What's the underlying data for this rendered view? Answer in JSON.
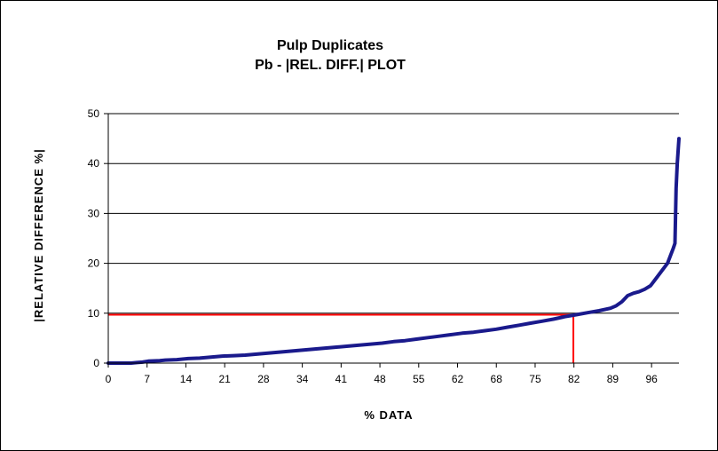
{
  "chart_data": {
    "type": "line",
    "title": "Pulp Duplicates",
    "subtitle": "Pb -  |REL. DIFF.|  PLOT",
    "xlabel": "% DATA",
    "ylabel": "|RELATIVE  DIFFERENCE %|",
    "xlim": [
      0,
      100
    ],
    "ylim": [
      0,
      50
    ],
    "x_ticks": [
      "0",
      "7",
      "14",
      "21",
      "28",
      "34",
      "41",
      "48",
      "55",
      "62",
      "68",
      "75",
      "82",
      "89",
      "96"
    ],
    "y_ticks": [
      "0",
      "10",
      "20",
      "30",
      "40",
      "50"
    ],
    "grid": "horizontal",
    "legend": "none",
    "series": [
      {
        "color": "#1a1a8c",
        "x": [
          0,
          4,
          5,
          6,
          7,
          9,
          10,
          12,
          14,
          16,
          18,
          20,
          22,
          24,
          26,
          28,
          30,
          32,
          34,
          36,
          38,
          40,
          42,
          44,
          46,
          48,
          50,
          52,
          54,
          56,
          58,
          60,
          62,
          64,
          66,
          68,
          70,
          72,
          74,
          76,
          78,
          80,
          82,
          84,
          86,
          88,
          89,
          90,
          91,
          92,
          93,
          94,
          95,
          96,
          97,
          98,
          99,
          99.3,
          99.5,
          99.7,
          100
        ],
        "y": [
          0,
          0,
          0.1,
          0.2,
          0.4,
          0.5,
          0.6,
          0.7,
          0.9,
          1.0,
          1.2,
          1.4,
          1.5,
          1.6,
          1.8,
          2.0,
          2.2,
          2.4,
          2.6,
          2.8,
          3.0,
          3.2,
          3.4,
          3.6,
          3.8,
          4.0,
          4.3,
          4.5,
          4.8,
          5.1,
          5.4,
          5.7,
          6.0,
          6.2,
          6.5,
          6.8,
          7.2,
          7.6,
          8.0,
          8.4,
          8.8,
          9.3,
          9.7,
          10.1,
          10.5,
          11.0,
          11.5,
          12.3,
          13.5,
          14.0,
          14.3,
          14.8,
          15.5,
          17.0,
          18.5,
          20.0,
          23.0,
          24.0,
          35.0,
          40.0,
          45.0
        ]
      }
    ],
    "reference_lines": [
      {
        "color": "#ff0000",
        "x": [
          0,
          81.5
        ],
        "y": [
          9.7,
          9.7
        ]
      },
      {
        "color": "#ff0000",
        "x": [
          81.5,
          81.5
        ],
        "y": [
          9.7,
          0
        ]
      }
    ]
  }
}
